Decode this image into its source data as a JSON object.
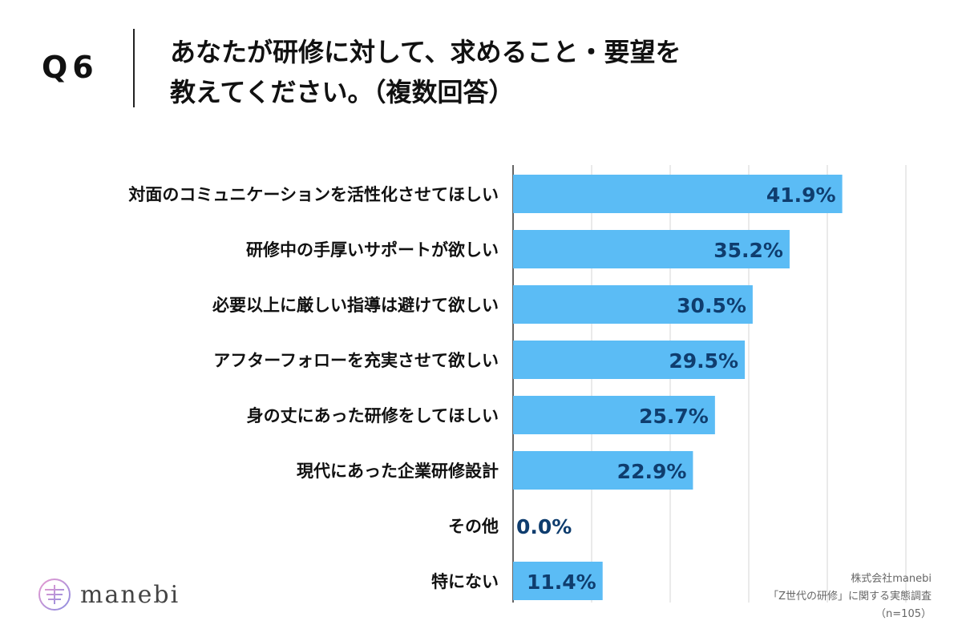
{
  "question": {
    "label": "Q6",
    "title_line1": "あなたが研修に対して、求めること・要望を",
    "title_line2": "教えてください。（複数回答）"
  },
  "chart_data": {
    "type": "bar",
    "orientation": "horizontal",
    "categories": [
      "対面のコミュニケーションを活性化させてほしい",
      "研修中の手厚いサポートが欲しい",
      "必要以上に厳しい指導は避けて欲しい",
      "アフターフォローを充実させて欲しい",
      "身の丈にあった研修をしてほしい",
      "現代にあった企業研修設計",
      "その他",
      "特にない"
    ],
    "values": [
      41.9,
      35.2,
      30.5,
      29.5,
      25.7,
      22.9,
      0.0,
      11.4
    ],
    "value_labels": [
      "41.9%",
      "35.2%",
      "30.5%",
      "29.5%",
      "25.7%",
      "22.9%",
      "0.0%",
      "11.4%"
    ],
    "xlim": [
      0,
      50
    ],
    "grid": true,
    "bar_color": "#5bbcf5",
    "label_color": "#0f3d6e"
  },
  "logo": {
    "text": "manebi",
    "icon": "manebi-logo-icon"
  },
  "footnote": {
    "company": "株式会社manebi",
    "survey": "「Z世代の研修」に関する実態調査",
    "sample": "（n=105）"
  }
}
